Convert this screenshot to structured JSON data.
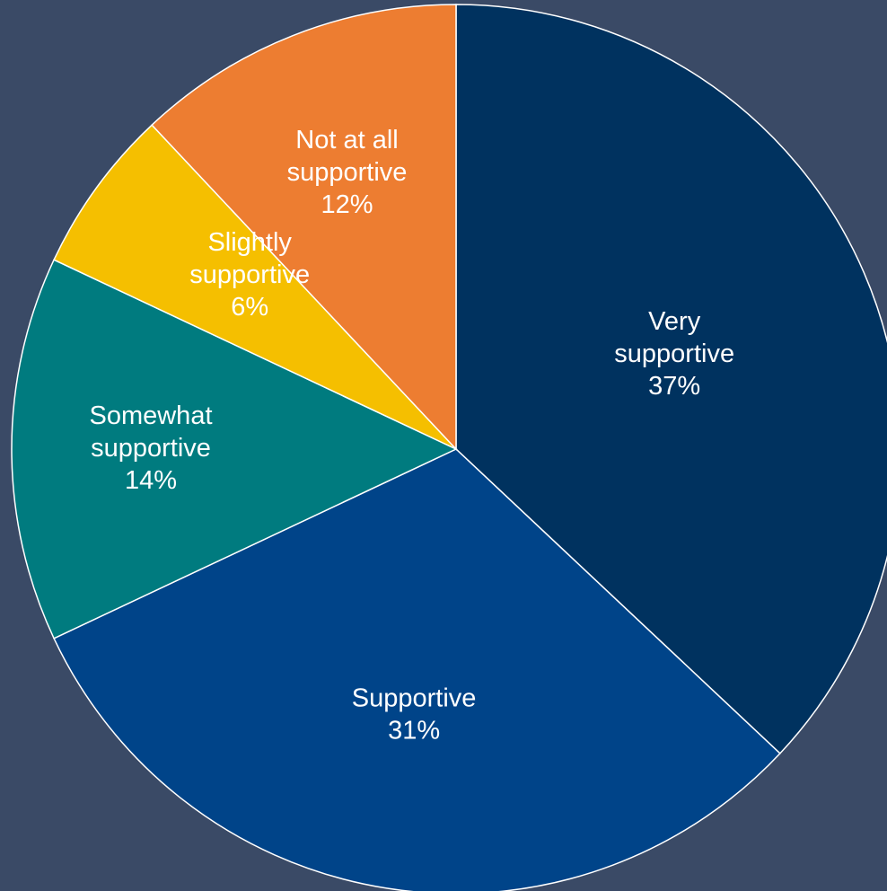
{
  "background_color": "#3a4a66",
  "chart_data": {
    "type": "pie",
    "start_angle_deg": 0,
    "direction": "clockwise",
    "slices": [
      {
        "lines": [
          "Very",
          "supportive"
        ],
        "percent_label": "37%",
        "value": 37,
        "color": "#00325f"
      },
      {
        "lines": [
          "Supportive"
        ],
        "percent_label": "31%",
        "value": 31,
        "color": "#004489"
      },
      {
        "lines": [
          "Somewhat",
          "supportive"
        ],
        "percent_label": "14%",
        "value": 14,
        "color": "#007b7f"
      },
      {
        "lines": [
          "Slightly",
          "supportive"
        ],
        "percent_label": "6%",
        "value": 6,
        "color": "#f5bf00"
      },
      {
        "lines": [
          "Not at all",
          "supportive"
        ],
        "percent_label": "12%",
        "value": 12,
        "color": "#ed7d31"
      }
    ]
  }
}
